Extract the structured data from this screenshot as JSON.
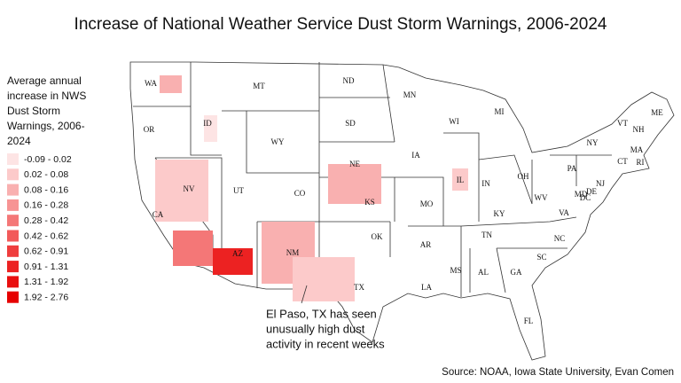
{
  "title": "Increase of National Weather Service Dust Storm Warnings, 2006-2024",
  "legend": {
    "title_lines": [
      "Average annual",
      "increase in NWS",
      "Dust Storm",
      "Warnings, 2006-",
      "2024"
    ],
    "items": [
      {
        "label": "-0.09 - 0.02",
        "color": "#fde4e4"
      },
      {
        "label": "0.02 - 0.08",
        "color": "#fccaca"
      },
      {
        "label": "0.08 - 0.16",
        "color": "#f9b0b0"
      },
      {
        "label": "0.16 - 0.28",
        "color": "#f79494"
      },
      {
        "label": "0.28 - 0.42",
        "color": "#f47777"
      },
      {
        "label": "0.42 - 0.62",
        "color": "#f25a5a"
      },
      {
        "label": "0.62 - 0.91",
        "color": "#ef3d3d"
      },
      {
        "label": "0.91 - 1.31",
        "color": "#ec2222"
      },
      {
        "label": "1.31 - 1.92",
        "color": "#e90f0f"
      },
      {
        "label": "1.92 - 2.76",
        "color": "#e60000"
      }
    ]
  },
  "states": [
    "WA",
    "OR",
    "CA",
    "ID",
    "NV",
    "MT",
    "WY",
    "UT",
    "AZ",
    "CO",
    "NM",
    "ND",
    "SD",
    "NE",
    "KS",
    "OK",
    "TX",
    "MN",
    "IA",
    "MO",
    "AR",
    "LA",
    "WI",
    "IL",
    "MI",
    "IN",
    "KY",
    "TN",
    "MS",
    "AL",
    "GA",
    "FL",
    "SC",
    "NC",
    "VA",
    "WV",
    "OH",
    "PA",
    "NY",
    "VT",
    "NH",
    "ME",
    "MA",
    "CT",
    "RI",
    "NJ",
    "DE",
    "MD",
    "DC"
  ],
  "annotation": {
    "lines": [
      "El Paso, TX has seen",
      "unusually high dust",
      "activity in recent weeks"
    ]
  },
  "source": "Source: NOAA, Iowa State University, Evan Comen"
}
